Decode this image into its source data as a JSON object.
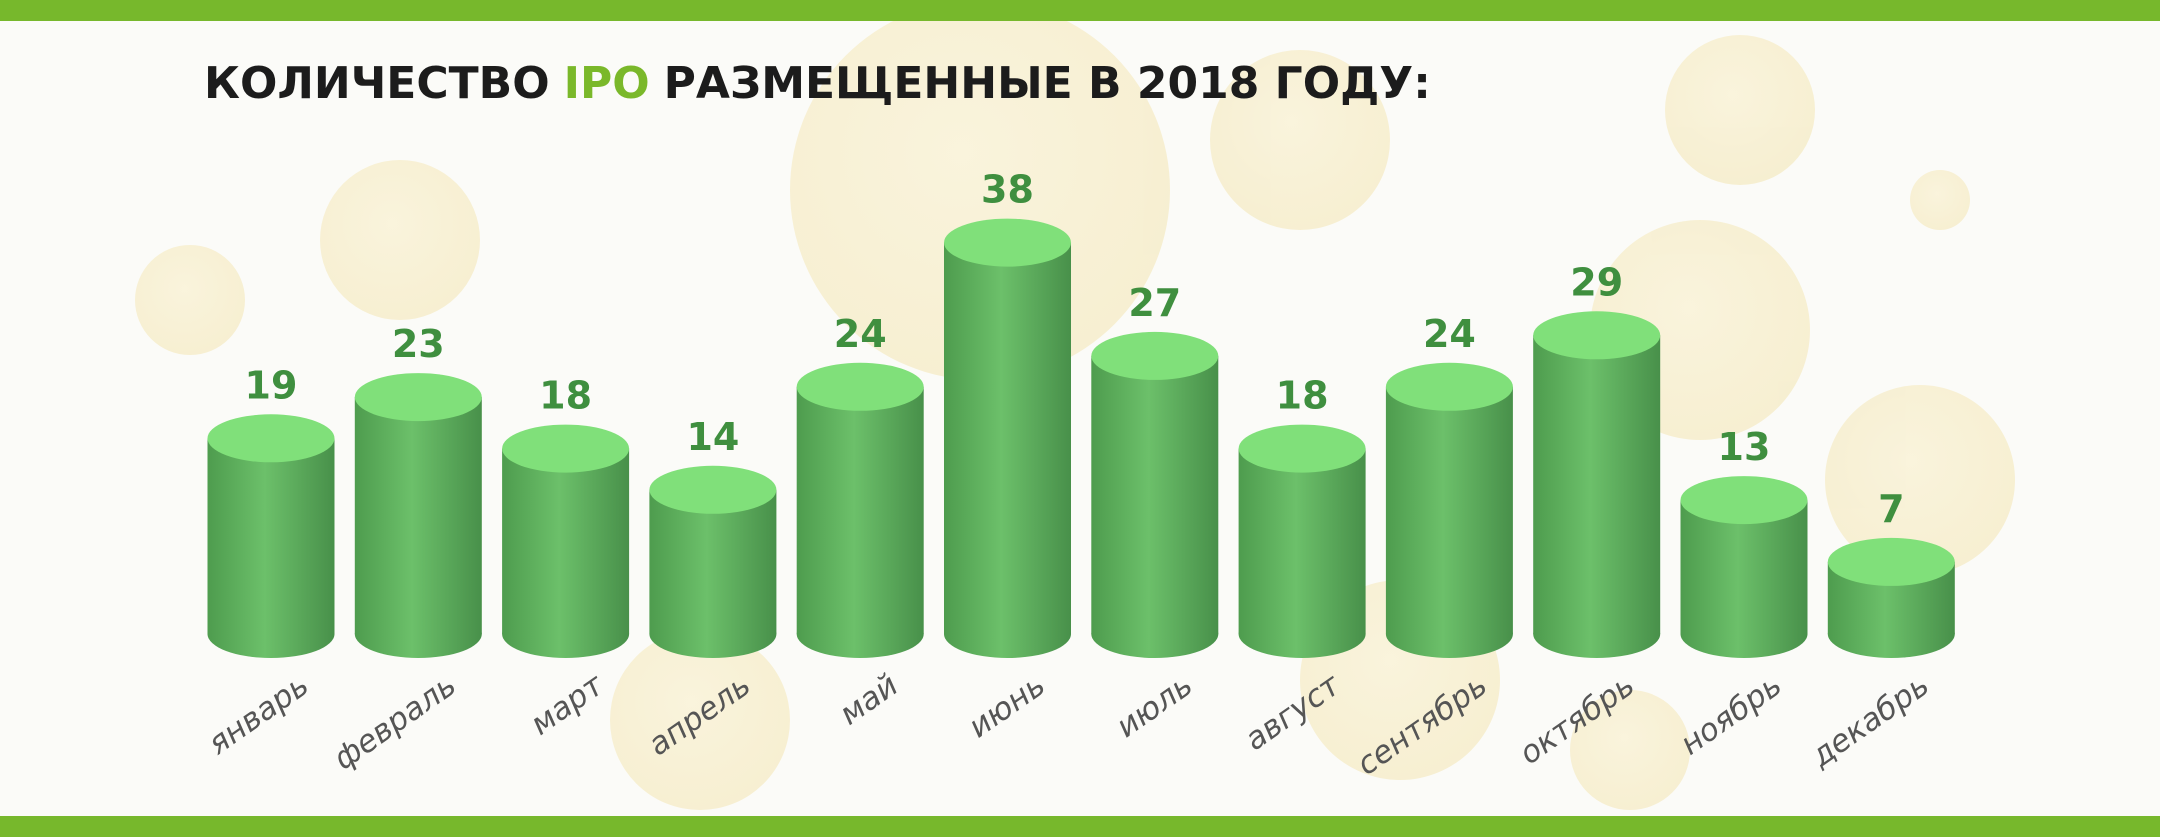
{
  "chart_data": {
    "type": "bar",
    "title": [
      "КОЛИЧЕСТВО",
      "IPO",
      "РАЗМЕЩЕННЫЕ В 2018 ГОДУ:"
    ],
    "title_highlight_color": "#7ab82a",
    "categories": [
      "январь",
      "февраль",
      "март",
      "апрель",
      "май",
      "июнь",
      "июль",
      "август",
      "сентябрь",
      "октябрь",
      "ноябрь",
      "декабрь"
    ],
    "values": [
      19,
      23,
      18,
      14,
      24,
      38,
      27,
      18,
      24,
      29,
      13,
      7
    ],
    "color": "#5fb25f",
    "top_color": "#80e07a",
    "label_color": "#3f8f3f"
  }
}
